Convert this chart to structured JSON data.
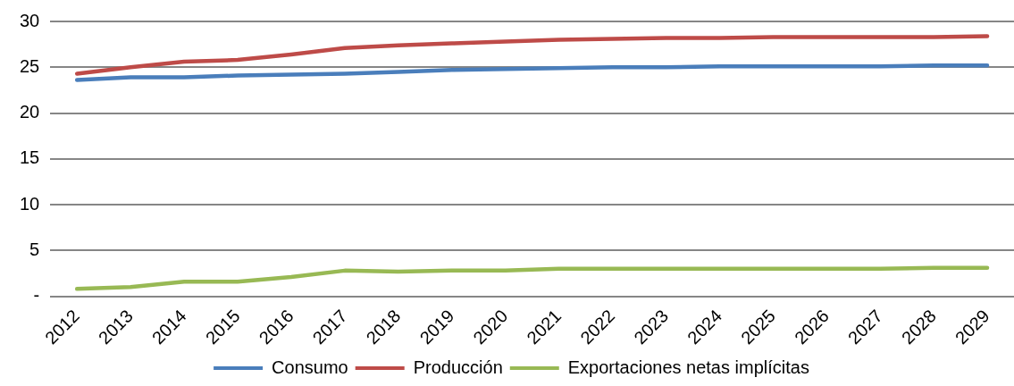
{
  "chart_data": {
    "type": "line",
    "categories": [
      "2012",
      "2013",
      "2014",
      "2015",
      "2016",
      "2017",
      "2018",
      "2019",
      "2020",
      "2021",
      "2022",
      "2023",
      "2024",
      "2025",
      "2026",
      "2027",
      "2028",
      "2029"
    ],
    "series": [
      {
        "name": "Consumo",
        "color": "#4a7ebb",
        "values": [
          23.6,
          23.9,
          23.9,
          24.1,
          24.2,
          24.3,
          24.5,
          24.7,
          24.8,
          24.9,
          25.0,
          25.0,
          25.1,
          25.1,
          25.1,
          25.1,
          25.2,
          25.2
        ]
      },
      {
        "name": "Producción",
        "color": "#be4b48",
        "values": [
          24.3,
          25.0,
          25.6,
          25.8,
          26.4,
          27.1,
          27.4,
          27.6,
          27.8,
          28.0,
          28.1,
          28.2,
          28.2,
          28.3,
          28.3,
          28.3,
          28.3,
          28.4
        ]
      },
      {
        "name": "Exportaciones netas implícitas",
        "color": "#98b954",
        "values": [
          0.8,
          1.0,
          1.6,
          1.6,
          2.1,
          2.8,
          2.7,
          2.8,
          2.8,
          3.0,
          3.0,
          3.0,
          3.0,
          3.0,
          3.0,
          3.0,
          3.1,
          3.1
        ]
      }
    ],
    "ylim": [
      0,
      30
    ],
    "yticks": [
      {
        "value": 0,
        "label": "-"
      },
      5,
      10,
      15,
      20,
      25,
      30
    ],
    "grid": "y",
    "legend": "bottom",
    "marker": "none",
    "line_style": "solid"
  }
}
